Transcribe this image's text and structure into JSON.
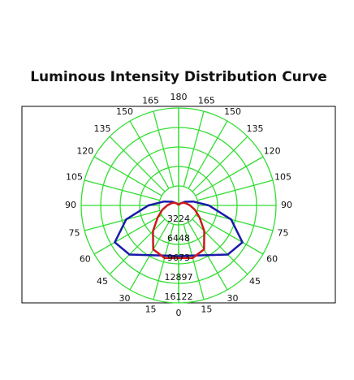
{
  "chart_data": {
    "type": "polar",
    "title": "Luminous Intensity Distribution Curve",
    "angles": [
      0,
      15,
      30,
      45,
      60,
      75,
      90,
      105,
      120,
      135,
      150,
      165,
      180
    ],
    "angle_ticks": [
      0,
      15,
      30,
      45,
      60,
      75,
      90,
      105,
      120,
      135,
      150,
      165,
      180
    ],
    "rlim": [
      0,
      16122
    ],
    "rticks": [
      3224,
      6448,
      9673,
      12897,
      16122
    ],
    "grid": true,
    "grid_color": "#33dd33",
    "symmetric": true,
    "series": [
      {
        "color": "#1a1aaa",
        "values": [
          8400,
          8600,
          9500,
          11500,
          12200,
          9000,
          5000,
          2500,
          1200,
          500,
          200,
          50,
          0
        ]
      },
      {
        "color": "#cc1a1a",
        "values": [
          8700,
          9000,
          8400,
          6000,
          4000,
          2800,
          1900,
          1300,
          900,
          500,
          250,
          80,
          0
        ]
      }
    ]
  }
}
